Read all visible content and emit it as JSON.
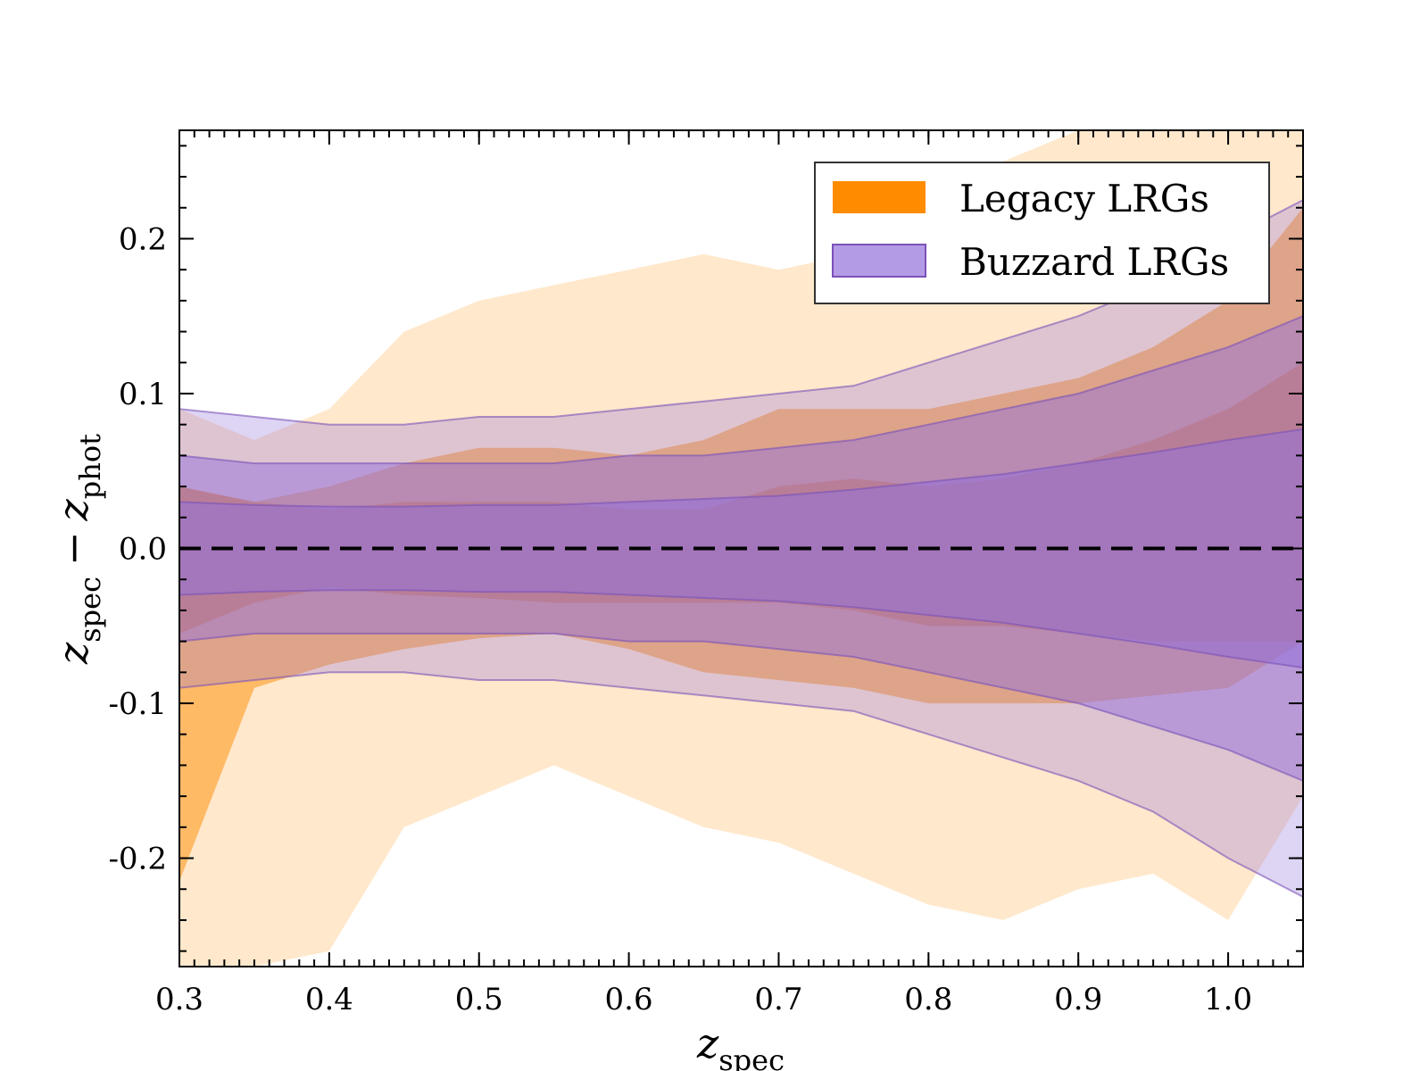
{
  "chart_data": {
    "type": "area",
    "title": "",
    "xlabel": {
      "main": "z",
      "sub": "spec"
    },
    "ylabel": {
      "z1": "z",
      "sub1": "spec",
      "op": "−",
      "z2": "z",
      "sub2": "phot"
    },
    "xlim": [
      0.3,
      1.05
    ],
    "ylim": [
      -0.27,
      0.27
    ],
    "xticks": [
      0.3,
      0.4,
      0.5,
      0.6,
      0.7,
      0.8,
      0.9,
      1.0
    ],
    "xtick_labels": [
      "0.3",
      "0.4",
      "0.5",
      "0.6",
      "0.7",
      "0.8",
      "0.9",
      "1.0"
    ],
    "yticks": [
      0.2,
      0.1,
      0.0,
      -0.1,
      -0.2
    ],
    "ytick_labels": [
      "0.2",
      "0.1",
      "0.0",
      "-0.1",
      "-0.2"
    ],
    "reference_line": {
      "y": 0.0,
      "style": "dashed",
      "color": "#000000"
    },
    "legend": {
      "position": "top-right",
      "entries": [
        {
          "label": "Legacy LRGs",
          "color": "#ff8c00"
        },
        {
          "label": "Buzzard LRGs",
          "color": "#9370db"
        }
      ]
    },
    "x": [
      0.3,
      0.35,
      0.4,
      0.45,
      0.5,
      0.55,
      0.6,
      0.65,
      0.7,
      0.75,
      0.8,
      0.85,
      0.9,
      0.95,
      1.0,
      1.05
    ],
    "series": [
      {
        "name": "Legacy LRGs",
        "color": "#ff8c00",
        "bands": [
          {
            "level": "outer",
            "opacity": 0.2,
            "upper": [
              0.09,
              0.07,
              0.09,
              0.14,
              0.16,
              0.17,
              0.18,
              0.19,
              0.18,
              0.19,
              0.22,
              0.25,
              0.27,
              0.27,
              0.27,
              0.27
            ],
            "lower": [
              -0.27,
              -0.27,
              -0.26,
              -0.18,
              -0.16,
              -0.14,
              -0.16,
              -0.18,
              -0.19,
              -0.21,
              -0.23,
              -0.24,
              -0.22,
              -0.21,
              -0.24,
              -0.16
            ]
          },
          {
            "level": "middle",
            "opacity": 0.5,
            "upper": [
              0.04,
              0.03,
              0.04,
              0.055,
              0.065,
              0.065,
              0.06,
              0.07,
              0.09,
              0.09,
              0.09,
              0.1,
              0.11,
              0.13,
              0.16,
              0.22
            ],
            "lower": [
              -0.215,
              -0.09,
              -0.075,
              -0.065,
              -0.058,
              -0.055,
              -0.065,
              -0.08,
              -0.085,
              -0.09,
              -0.1,
              -0.1,
              -0.1,
              -0.095,
              -0.09,
              -0.06
            ]
          },
          {
            "level": "inner",
            "opacity": 0.75,
            "upper": [
              0.04,
              0.03,
              0.025,
              0.03,
              0.03,
              0.03,
              0.025,
              0.025,
              0.04,
              0.045,
              0.04,
              0.045,
              0.055,
              0.07,
              0.09,
              0.12
            ],
            "lower": [
              -0.055,
              -0.035,
              -0.025,
              -0.03,
              -0.032,
              -0.035,
              -0.035,
              -0.035,
              -0.035,
              -0.04,
              -0.05,
              -0.05,
              -0.055,
              -0.06,
              -0.06,
              -0.06
            ]
          }
        ]
      },
      {
        "name": "Buzzard LRGs",
        "color": "#9370db",
        "bands": [
          {
            "level": "outer",
            "opacity": 0.3,
            "upper": [
              0.09,
              0.085,
              0.08,
              0.08,
              0.085,
              0.085,
              0.09,
              0.095,
              0.1,
              0.105,
              0.12,
              0.135,
              0.15,
              0.17,
              0.2,
              0.225
            ],
            "lower": [
              -0.09,
              -0.085,
              -0.08,
              -0.08,
              -0.085,
              -0.085,
              -0.09,
              -0.095,
              -0.1,
              -0.105,
              -0.12,
              -0.135,
              -0.15,
              -0.17,
              -0.2,
              -0.225
            ]
          },
          {
            "level": "middle",
            "opacity": 0.5,
            "upper": [
              0.06,
              0.055,
              0.055,
              0.055,
              0.055,
              0.055,
              0.06,
              0.06,
              0.065,
              0.07,
              0.08,
              0.09,
              0.1,
              0.115,
              0.13,
              0.15
            ],
            "lower": [
              -0.06,
              -0.055,
              -0.055,
              -0.055,
              -0.055,
              -0.055,
              -0.06,
              -0.06,
              -0.065,
              -0.07,
              -0.08,
              -0.09,
              -0.1,
              -0.115,
              -0.13,
              -0.15
            ]
          },
          {
            "level": "inner",
            "opacity": 0.55,
            "upper": [
              0.03,
              0.028,
              0.027,
              0.027,
              0.028,
              0.028,
              0.03,
              0.032,
              0.034,
              0.038,
              0.043,
              0.048,
              0.055,
              0.062,
              0.07,
              0.077
            ],
            "lower": [
              -0.03,
              -0.028,
              -0.027,
              -0.027,
              -0.028,
              -0.028,
              -0.03,
              -0.032,
              -0.034,
              -0.038,
              -0.043,
              -0.048,
              -0.055,
              -0.062,
              -0.07,
              -0.077
            ]
          }
        ]
      }
    ]
  }
}
